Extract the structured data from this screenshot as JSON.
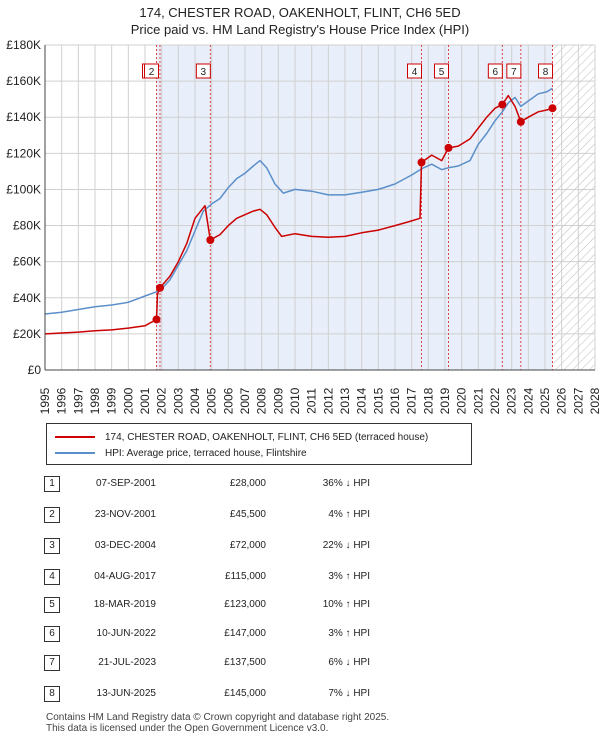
{
  "title_line1": "174, CHESTER ROAD, OAKENHOLT, FLINT, CH6 5ED",
  "title_line2": "Price paid vs. HM Land Registry's House Price Index (HPI)",
  "legend": {
    "property": "174, CHESTER ROAD, OAKENHOLT, FLINT, CH6 5ED (terraced house)",
    "hpi": "HPI: Average price, terraced house, Flintshire"
  },
  "colors": {
    "property": "#cc0000",
    "hpi": "#5b8fc9",
    "shade": "#e8eefa",
    "grid": "#d0d0d0"
  },
  "transactions": [
    {
      "num": "1",
      "date": "07-SEP-2001",
      "price": "£28,000",
      "hpi": "36% ↓ HPI"
    },
    {
      "num": "2",
      "date": "23-NOV-2001",
      "price": "£45,500",
      "hpi": "4% ↑ HPI"
    },
    {
      "num": "3",
      "date": "03-DEC-2004",
      "price": "£72,000",
      "hpi": "22% ↓ HPI"
    },
    {
      "num": "4",
      "date": "04-AUG-2017",
      "price": "£115,000",
      "hpi": "3% ↑ HPI"
    },
    {
      "num": "5",
      "date": "18-MAR-2019",
      "price": "£123,000",
      "hpi": "10% ↑ HPI"
    },
    {
      "num": "6",
      "date": "10-JUN-2022",
      "price": "£147,000",
      "hpi": "3% ↑ HPI"
    },
    {
      "num": "7",
      "date": "21-JUL-2023",
      "price": "£137,500",
      "hpi": "6% ↓ HPI"
    },
    {
      "num": "8",
      "date": "13-JUN-2025",
      "price": "£145,000",
      "hpi": "7% ↓ HPI"
    }
  ],
  "footer_line1": "Contains HM Land Registry data © Crown copyright and database right 2025.",
  "footer_line2": "This data is licensed under the Open Government Licence v3.0.",
  "chart_data": {
    "type": "line",
    "title": "174, CHESTER ROAD, OAKENHOLT, FLINT, CH6 5ED — Price paid vs. HM Land Registry's House Price Index (HPI)",
    "xlim": [
      1995,
      2028
    ],
    "ylim": [
      0,
      180000
    ],
    "x_ticks": [
      1995,
      1996,
      1997,
      1998,
      1999,
      2000,
      2001,
      2002,
      2003,
      2004,
      2005,
      2006,
      2007,
      2008,
      2009,
      2010,
      2011,
      2012,
      2013,
      2014,
      2015,
      2016,
      2017,
      2018,
      2019,
      2020,
      2021,
      2022,
      2023,
      2024,
      2025,
      2026,
      2027,
      2028
    ],
    "y_ticks": [
      {
        "v": 0,
        "label": "£0"
      },
      {
        "v": 20000,
        "label": "£20K"
      },
      {
        "v": 40000,
        "label": "£40K"
      },
      {
        "v": 60000,
        "label": "£60K"
      },
      {
        "v": 80000,
        "label": "£80K"
      },
      {
        "v": 100000,
        "label": "£100K"
      },
      {
        "v": 120000,
        "label": "£120K"
      },
      {
        "v": 140000,
        "label": "£140K"
      },
      {
        "v": 160000,
        "label": "£160K"
      },
      {
        "v": 180000,
        "label": "£180K"
      }
    ],
    "shaded_span": [
      2001.69,
      2025.45
    ],
    "forecast_from": 2025.45,
    "sales": [
      {
        "label": "1",
        "x": 2001.69,
        "y": 28000
      },
      {
        "label": "2",
        "x": 2001.9,
        "y": 45500
      },
      {
        "label": "3",
        "x": 2004.92,
        "y": 72000
      },
      {
        "label": "4",
        "x": 2017.59,
        "y": 115000
      },
      {
        "label": "5",
        "x": 2019.21,
        "y": 123000
      },
      {
        "label": "6",
        "x": 2022.44,
        "y": 147000
      },
      {
        "label": "7",
        "x": 2023.55,
        "y": 137500
      },
      {
        "label": "8",
        "x": 2025.45,
        "y": 145000
      }
    ],
    "series": [
      {
        "name": "HPI: Average price, terraced house, Flintshire",
        "points": [
          [
            1995,
            31000
          ],
          [
            1996,
            32000
          ],
          [
            1997,
            33500
          ],
          [
            1998,
            35000
          ],
          [
            1999,
            36000
          ],
          [
            2000,
            37500
          ],
          [
            2001,
            41000
          ],
          [
            2001.9,
            44000
          ],
          [
            2002.5,
            50000
          ],
          [
            2003,
            58000
          ],
          [
            2003.5,
            66000
          ],
          [
            2004,
            77000
          ],
          [
            2004.5,
            88000
          ],
          [
            2005,
            92000
          ],
          [
            2005.5,
            95000
          ],
          [
            2006,
            101000
          ],
          [
            2006.5,
            106000
          ],
          [
            2007,
            109000
          ],
          [
            2007.5,
            113000
          ],
          [
            2007.9,
            116000
          ],
          [
            2008.3,
            112000
          ],
          [
            2008.8,
            103000
          ],
          [
            2009.3,
            98000
          ],
          [
            2010,
            100000
          ],
          [
            2011,
            99000
          ],
          [
            2012,
            97000
          ],
          [
            2013,
            97000
          ],
          [
            2014,
            98500
          ],
          [
            2015,
            100000
          ],
          [
            2016,
            103000
          ],
          [
            2017,
            108000
          ],
          [
            2017.6,
            111500
          ],
          [
            2018.2,
            114000
          ],
          [
            2018.8,
            111000
          ],
          [
            2019.2,
            112000
          ],
          [
            2019.8,
            113000
          ],
          [
            2020.5,
            116000
          ],
          [
            2021,
            125000
          ],
          [
            2021.5,
            131000
          ],
          [
            2022,
            138000
          ],
          [
            2022.44,
            143000
          ],
          [
            2022.8,
            148000
          ],
          [
            2023.2,
            151000
          ],
          [
            2023.55,
            146000
          ],
          [
            2024,
            149000
          ],
          [
            2024.6,
            153000
          ],
          [
            2025.1,
            154000
          ],
          [
            2025.45,
            156000
          ]
        ]
      },
      {
        "name": "174, CHESTER ROAD, OAKENHOLT, FLINT, CH6 5ED (terraced house)",
        "points": [
          [
            1995,
            20000
          ],
          [
            1996,
            20500
          ],
          [
            1997,
            21000
          ],
          [
            1998,
            21700
          ],
          [
            1999,
            22200
          ],
          [
            2000,
            23200
          ],
          [
            2001,
            24500
          ],
          [
            2001.69,
            28000
          ],
          [
            2001.75,
            42000
          ],
          [
            2001.9,
            45500
          ],
          [
            2002.5,
            52000
          ],
          [
            2003,
            60000
          ],
          [
            2003.5,
            70000
          ],
          [
            2004,
            84000
          ],
          [
            2004.6,
            91000
          ],
          [
            2004.92,
            72000
          ],
          [
            2005.5,
            75000
          ],
          [
            2006,
            80000
          ],
          [
            2006.5,
            84000
          ],
          [
            2007,
            86000
          ],
          [
            2007.5,
            88000
          ],
          [
            2007.9,
            89000
          ],
          [
            2008.3,
            86000
          ],
          [
            2008.8,
            79000
          ],
          [
            2009.2,
            74000
          ],
          [
            2010,
            75500
          ],
          [
            2011,
            74000
          ],
          [
            2012,
            73500
          ],
          [
            2013,
            74000
          ],
          [
            2014,
            76000
          ],
          [
            2015,
            77500
          ],
          [
            2016,
            80000
          ],
          [
            2016.8,
            82000
          ],
          [
            2017.5,
            84000
          ],
          [
            2017.59,
            115000
          ],
          [
            2018.2,
            119000
          ],
          [
            2018.8,
            116000
          ],
          [
            2019.21,
            123000
          ],
          [
            2019.8,
            124000
          ],
          [
            2020.5,
            128000
          ],
          [
            2021,
            134000
          ],
          [
            2021.5,
            140000
          ],
          [
            2022,
            145000
          ],
          [
            2022.44,
            147000
          ],
          [
            2022.8,
            152000
          ],
          [
            2023.2,
            146000
          ],
          [
            2023.55,
            137500
          ],
          [
            2024,
            140000
          ],
          [
            2024.6,
            143000
          ],
          [
            2025.1,
            144000
          ],
          [
            2025.45,
            145000
          ]
        ]
      }
    ]
  }
}
